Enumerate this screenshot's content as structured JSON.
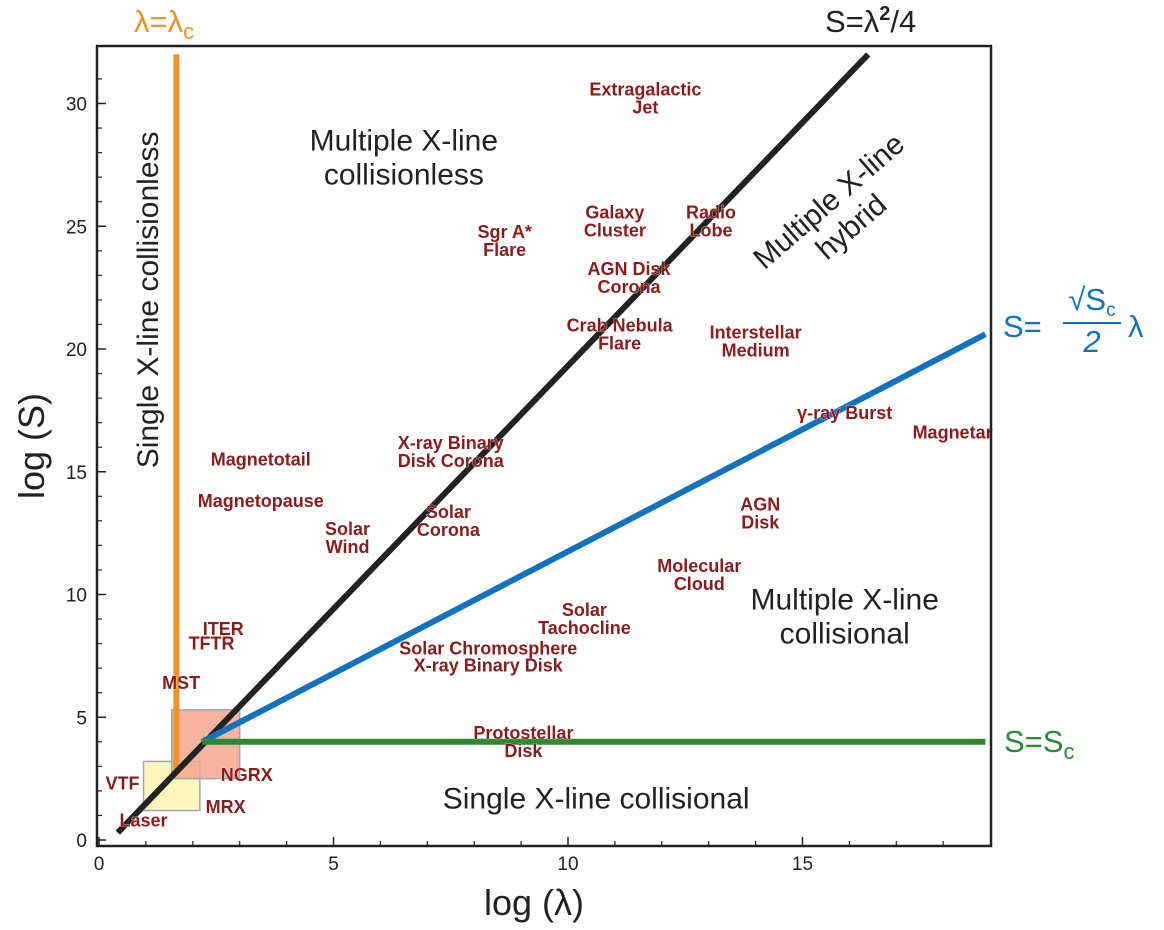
{
  "chart_data": {
    "type": "scatter",
    "xlabel": "log (λ)",
    "ylabel": "log (S)",
    "xlim": [
      0,
      19
    ],
    "ylim": [
      0,
      32
    ],
    "xticks": [
      0,
      5,
      10,
      15
    ],
    "yticks": [
      0,
      5,
      10,
      15,
      20,
      25,
      30
    ],
    "grid": false,
    "lines": [
      {
        "id": "lambda_c",
        "label": "λ=λ",
        "label_sub": "c",
        "color": "#f39224",
        "points": [
          [
            1.65,
            2.8
          ],
          [
            1.65,
            32
          ]
        ]
      },
      {
        "id": "sweet",
        "label": "S=λ",
        "label_sup": "2",
        "label_tail": "/4",
        "color": "#222222",
        "points": [
          [
            0.4,
            0.3
          ],
          [
            16.4,
            32
          ]
        ]
      },
      {
        "id": "sqrt",
        "label": "S=",
        "label_num": "√S",
        "label_num_sub": "c",
        "label_den": "2",
        "label_tail": "λ",
        "color": "#1272bd",
        "points": [
          [
            2.2,
            4.0
          ],
          [
            18.9,
            20.6
          ]
        ]
      },
      {
        "id": "s_c",
        "label": "S=S",
        "label_sub": "c",
        "color": "#2b8a33",
        "points": [
          [
            2.2,
            4.0
          ],
          [
            18.9,
            4.0
          ]
        ]
      }
    ],
    "boxes": [
      {
        "id": "lab_box",
        "x": [
          0.95,
          2.15
        ],
        "y": [
          1.2,
          3.2
        ],
        "color": "#fbf5b0"
      },
      {
        "id": "hybrid_box",
        "x": [
          1.55,
          3.0
        ],
        "y": [
          2.5,
          5.3
        ],
        "color": "#f4a68f"
      }
    ],
    "regions": [
      {
        "id": "mult_collisionless",
        "lines": [
          "Multiple X-line",
          "collisionless"
        ],
        "x": 6.5,
        "y": 27.8,
        "rotate": 0
      },
      {
        "id": "mult_hybrid",
        "lines": [
          "Multiple X-line",
          "hybrid"
        ],
        "x": 15.8,
        "y": 25.5,
        "rotate": -41
      },
      {
        "id": "single_collisionless",
        "lines": [
          "Single X-line collisionless"
        ],
        "x": 1.05,
        "y": 22.0,
        "rotate": -90
      },
      {
        "id": "mult_collisional",
        "lines": [
          "Multiple X-line",
          "collisional"
        ],
        "x": 15.9,
        "y": 9.1,
        "rotate": 0
      },
      {
        "id": "single_collisional",
        "lines": [
          "Single X-line collisional"
        ],
        "x": 10.6,
        "y": 1.7,
        "rotate": 0
      }
    ],
    "objects": [
      {
        "id": "extragalactic_jet",
        "lines": [
          "Extragalactic",
          "Jet"
        ],
        "x": 11.65,
        "y": 30.2
      },
      {
        "id": "galaxy_cluster",
        "lines": [
          "Galaxy",
          "Cluster"
        ],
        "x": 11.0,
        "y": 25.2
      },
      {
        "id": "radio_lobe",
        "lines": [
          "Radio",
          "Lobe"
        ],
        "x": 13.05,
        "y": 25.2
      },
      {
        "id": "sgr_a_flare",
        "lines": [
          "Sgr A*",
          "Flare"
        ],
        "x": 8.65,
        "y": 24.4
      },
      {
        "id": "agn_disk_corona",
        "lines": [
          "AGN Disk",
          "Corona"
        ],
        "x": 11.3,
        "y": 22.9
      },
      {
        "id": "crab_nebula_flare",
        "lines": [
          "Crab Nebula",
          "Flare"
        ],
        "x": 11.1,
        "y": 20.6
      },
      {
        "id": "interstellar_medium",
        "lines": [
          "Interstellar",
          "Medium"
        ],
        "x": 14.0,
        "y": 20.3
      },
      {
        "id": "gamma_ray_burst",
        "lines": [
          "γ-ray Burst"
        ],
        "x": 15.9,
        "y": 17.4
      },
      {
        "id": "magnetar",
        "lines": [
          "Magnetar"
        ],
        "x": 18.2,
        "y": 16.6
      },
      {
        "id": "xray_binary_disk_corona",
        "lines": [
          "X-ray Binary",
          "Disk Corona"
        ],
        "x": 7.5,
        "y": 15.8
      },
      {
        "id": "magnetotail",
        "lines": [
          "Magnetotail"
        ],
        "x": 3.45,
        "y": 15.5
      },
      {
        "id": "magnetopause",
        "lines": [
          "Magnetopause"
        ],
        "x": 3.45,
        "y": 13.8
      },
      {
        "id": "agn_disk",
        "lines": [
          "AGN",
          "Disk"
        ],
        "x": 14.1,
        "y": 13.3
      },
      {
        "id": "solar_corona",
        "lines": [
          "Solar",
          "Corona"
        ],
        "x": 7.45,
        "y": 13.0
      },
      {
        "id": "solar_wind",
        "lines": [
          "Solar",
          "Wind"
        ],
        "x": 5.3,
        "y": 12.3
      },
      {
        "id": "molecular_cloud",
        "lines": [
          "Molecular",
          "Cloud"
        ],
        "x": 12.8,
        "y": 10.8
      },
      {
        "id": "solar_tachocline",
        "lines": [
          "Solar",
          "Tachocline"
        ],
        "x": 10.35,
        "y": 9.0
      },
      {
        "id": "solar_chromosphere",
        "lines": [
          "Solar Chromosphere"
        ],
        "x": 8.3,
        "y": 7.8
      },
      {
        "id": "xray_binary_disk",
        "lines": [
          "X-ray Binary Disk"
        ],
        "x": 8.3,
        "y": 7.1
      },
      {
        "id": "iter",
        "lines": [
          "ITER"
        ],
        "x": 2.65,
        "y": 8.6
      },
      {
        "id": "tftr",
        "lines": [
          "TFTR"
        ],
        "x": 2.4,
        "y": 8.0
      },
      {
        "id": "mst",
        "lines": [
          "MST"
        ],
        "x": 1.75,
        "y": 6.4
      },
      {
        "id": "protostellar_disk",
        "lines": [
          "Protostellar",
          "Disk"
        ],
        "x": 9.05,
        "y": 4.0
      },
      {
        "id": "ngrx",
        "lines": [
          "NGRX"
        ],
        "x": 3.15,
        "y": 2.65
      },
      {
        "id": "vtf",
        "lines": [
          "VTF"
        ],
        "x": 0.5,
        "y": 2.3
      },
      {
        "id": "mrx",
        "lines": [
          "MRX"
        ],
        "x": 2.7,
        "y": 1.35
      },
      {
        "id": "laser",
        "lines": [
          "Laser"
        ],
        "x": 0.95,
        "y": 0.8
      }
    ]
  }
}
